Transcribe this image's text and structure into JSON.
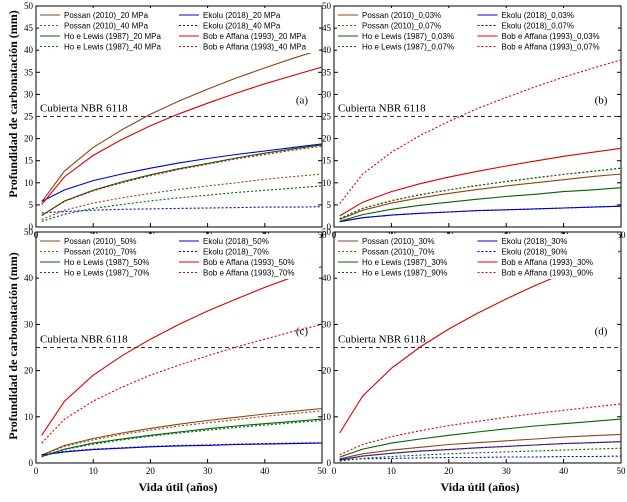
{
  "ylabel_shared": "Profundidad de carbonatación  (mm)",
  "xlabel_shared": "Vida útil (años)",
  "reference_text": "Cubierta NBR 6118",
  "chart_data": [
    {
      "type": "line",
      "panel": "(a)",
      "xlim": [
        0,
        50
      ],
      "ylim": [
        0,
        50
      ],
      "xticks": [
        "0",
        "10",
        "20",
        "30",
        "40",
        "50"
      ],
      "yticks": [
        "0",
        "5",
        "10",
        "15",
        "20",
        "25",
        "30",
        "35",
        "40",
        "45",
        "50"
      ],
      "reference_line": 25,
      "series": [
        {
          "name": "Possan (2010)_20 MPa",
          "color": "#8B4513",
          "dash": "solid",
          "x": [
            1,
            5,
            10,
            15,
            20,
            25,
            30,
            35,
            40,
            45,
            50
          ],
          "y": [
            5.7,
            12.7,
            18,
            22,
            25.5,
            28.5,
            31.2,
            33.7,
            36,
            38.2,
            40.2
          ]
        },
        {
          "name": "Ekolu (2018)_20 MPa",
          "color": "#0000cc",
          "dash": "solid",
          "x": [
            1,
            5,
            10,
            15,
            20,
            25,
            30,
            35,
            40,
            45,
            50
          ],
          "y": [
            5.8,
            8.4,
            10.5,
            12,
            13.3,
            14.5,
            15.5,
            16.4,
            17.2,
            18,
            18.8
          ]
        },
        {
          "name": "Possan (2010)_40 MPa",
          "color": "#8B4513",
          "dash": "dotted",
          "x": [
            1,
            5,
            10,
            15,
            20,
            25,
            30,
            35,
            40,
            45,
            50
          ],
          "y": [
            1.7,
            3.8,
            5.4,
            6.6,
            7.6,
            8.5,
            9.3,
            10,
            10.8,
            11.4,
            12
          ]
        },
        {
          "name": "Ekolu (2018)_40 MPa",
          "color": "#0000cc",
          "dash": "dotted",
          "x": [
            1,
            5,
            10,
            15,
            20,
            25,
            30,
            35,
            40,
            45,
            50
          ],
          "y": [
            3.2,
            3.5,
            3.8,
            4,
            4.1,
            4.2,
            4.3,
            4.4,
            4.5,
            4.5,
            4.6
          ]
        },
        {
          "name": "Ho e Lewis (1987)_20 MPa",
          "color": "#006400",
          "dash": "solid",
          "x": [
            1,
            5,
            10,
            15,
            20,
            25,
            30,
            35,
            40,
            45,
            50
          ],
          "y": [
            2.6,
            5.9,
            8.3,
            10.2,
            11.8,
            13.2,
            14.4,
            15.6,
            16.7,
            17.7,
            18.6
          ]
        },
        {
          "name": "Bob e Affana (1993)_20 MPa",
          "color": "#dd0000",
          "dash": "solid",
          "x": [
            1,
            5,
            10,
            15,
            20,
            25,
            30,
            35,
            40,
            45,
            50
          ],
          "y": [
            5.1,
            11.4,
            16.2,
            19.8,
            22.9,
            25.6,
            28,
            30.3,
            32.4,
            34.3,
            36.2
          ]
        },
        {
          "name": "Ho e Lewis (1987)_40 MPa",
          "color": "#006400",
          "dash": "dotted",
          "x": [
            1,
            5,
            10,
            15,
            20,
            25,
            30,
            35,
            40,
            45,
            50
          ],
          "y": [
            1.3,
            2.9,
            4.2,
            5.1,
            5.9,
            6.6,
            7.2,
            7.8,
            8.3,
            8.8,
            9.3
          ]
        },
        {
          "name": "Bob e Affana (1993)_40 MPa",
          "color": "#dd0000",
          "dash": "dotted",
          "x": [
            1,
            5,
            10,
            15,
            20,
            25,
            30,
            35,
            40,
            45,
            50
          ],
          "y": [
            2.6,
            5.8,
            8.2,
            10,
            11.6,
            13,
            14.2,
            15.4,
            16.4,
            17.4,
            18.3
          ]
        }
      ]
    },
    {
      "type": "line",
      "panel": "(b)",
      "xlim": [
        0,
        50
      ],
      "ylim": [
        0,
        50
      ],
      "xticks": [
        "0",
        "10",
        "20",
        "30",
        "40",
        "50"
      ],
      "yticks": [
        "0",
        "5",
        "10",
        "15",
        "20",
        "25",
        "30",
        "35",
        "40",
        "45",
        "50"
      ],
      "reference_line": 25,
      "series": [
        {
          "name": "Possan (2010)_0,03%",
          "color": "#8B4513",
          "dash": "solid",
          "x": [
            1,
            5,
            10,
            15,
            20,
            25,
            30,
            35,
            40,
            45,
            50
          ],
          "y": [
            1.7,
            3.8,
            5.4,
            6.6,
            7.6,
            8.5,
            9.3,
            10,
            10.7,
            11.4,
            12
          ]
        },
        {
          "name": "Ekolu (2018)_0,03%",
          "color": "#0000cc",
          "dash": "solid",
          "x": [
            1,
            5,
            10,
            15,
            20,
            25,
            30,
            35,
            40,
            45,
            50
          ],
          "y": [
            1.2,
            2.1,
            2.7,
            3.1,
            3.4,
            3.7,
            3.9,
            4.1,
            4.3,
            4.5,
            4.7
          ]
        },
        {
          "name": "Possan (2010)_0,07%",
          "color": "#8B4513",
          "dash": "dotted",
          "x": [
            1,
            5,
            10,
            15,
            20,
            25,
            30,
            35,
            40,
            45,
            50
          ],
          "y": [
            1.9,
            4.2,
            6,
            7.3,
            8.4,
            9.4,
            10.3,
            11.1,
            11.9,
            12.6,
            13.3
          ]
        },
        {
          "name": "Ekolu (2018)_0,07%",
          "color": "#0000cc",
          "dash": "dotted",
          "x": [
            1,
            5,
            10,
            15,
            20,
            25,
            30,
            35,
            40,
            45,
            50
          ],
          "y": [
            1.2,
            2.1,
            2.7,
            3.1,
            3.4,
            3.7,
            3.9,
            4.1,
            4.3,
            4.5,
            4.7
          ]
        },
        {
          "name": "Ho e Lewis (1987)_0,03%",
          "color": "#006400",
          "dash": "solid",
          "x": [
            1,
            5,
            10,
            15,
            20,
            25,
            30,
            35,
            40,
            45,
            50
          ],
          "y": [
            1.3,
            2.8,
            4,
            4.9,
            5.6,
            6.3,
            6.9,
            7.4,
            8,
            8.4,
            8.9
          ]
        },
        {
          "name": "Bob e Affana (1993)_0,03%",
          "color": "#dd0000",
          "dash": "solid",
          "x": [
            1,
            5,
            10,
            15,
            20,
            25,
            30,
            35,
            40,
            45,
            50
          ],
          "y": [
            2.5,
            5.6,
            8,
            9.8,
            11.3,
            12.6,
            13.8,
            14.9,
            16,
            16.9,
            17.8
          ]
        },
        {
          "name": "Ho e Lewis (1987)_0,07%",
          "color": "#006400",
          "dash": "dotted",
          "x": [
            1,
            5,
            10,
            15,
            20,
            25,
            30,
            35,
            40,
            45,
            50
          ],
          "y": [
            1.9,
            4.2,
            5.9,
            7.3,
            8.4,
            9.4,
            10.3,
            11.1,
            11.9,
            12.6,
            13.3
          ]
        },
        {
          "name": "Bob e Affana (1993)_0,07%",
          "color": "#dd0000",
          "dash": "dotted",
          "x": [
            1,
            5,
            10,
            15,
            20,
            25,
            30,
            35,
            40,
            45,
            50
          ],
          "y": [
            5.3,
            12,
            16.9,
            20.7,
            23.9,
            26.8,
            29.3,
            31.7,
            33.9,
            35.9,
            37.8
          ]
        }
      ]
    },
    {
      "type": "line",
      "panel": "(c)",
      "xlim": [
        0,
        50
      ],
      "ylim": [
        0,
        50
      ],
      "xticks": [
        "0",
        "10",
        "20",
        "30",
        "40",
        "50"
      ],
      "yticks": [
        "0",
        "10",
        "20",
        "30",
        "40",
        "50"
      ],
      "reference_line": 25,
      "series": [
        {
          "name": "Possan (2010)_50%",
          "color": "#8B4513",
          "dash": "solid",
          "x": [
            1,
            5,
            10,
            15,
            20,
            25,
            30,
            35,
            40,
            45,
            50
          ],
          "y": [
            1.7,
            3.8,
            5.3,
            6.5,
            7.5,
            8.4,
            9.2,
            9.9,
            10.6,
            11.2,
            11.8
          ]
        },
        {
          "name": "Ekolu (2018)_50%",
          "color": "#0000cc",
          "dash": "solid",
          "x": [
            1,
            5,
            10,
            15,
            20,
            25,
            30,
            35,
            40,
            45,
            50
          ],
          "y": [
            1.7,
            2.4,
            2.9,
            3.2,
            3.5,
            3.7,
            3.8,
            4,
            4.1,
            4.2,
            4.3
          ]
        },
        {
          "name": "Possan (2010)_70%",
          "color": "#8B4513",
          "dash": "dotted",
          "x": [
            1,
            5,
            10,
            15,
            20,
            25,
            30,
            35,
            40,
            45,
            50
          ],
          "y": [
            1.6,
            3.6,
            5,
            6.2,
            7.1,
            8,
            8.7,
            9.4,
            10.1,
            10.7,
            11.3
          ]
        },
        {
          "name": "Ekolu (2018)_70%",
          "color": "#0000cc",
          "dash": "dotted",
          "x": [
            1,
            5,
            10,
            15,
            20,
            25,
            30,
            35,
            40,
            45,
            50
          ],
          "y": [
            1.8,
            2.5,
            3,
            3.3,
            3.6,
            3.8,
            3.9,
            4.1,
            4.2,
            4.3,
            4.4
          ]
        },
        {
          "name": "Ho e Lewis (1987)_50%",
          "color": "#006400",
          "dash": "solid",
          "x": [
            1,
            5,
            10,
            15,
            20,
            25,
            30,
            35,
            40,
            45,
            50
          ],
          "y": [
            1.4,
            3,
            4.3,
            5.2,
            6,
            6.7,
            7.4,
            8,
            8.5,
            9,
            9.5
          ]
        },
        {
          "name": "Bob e Affana (1993)_50%",
          "color": "#dd0000",
          "dash": "solid",
          "x": [
            1,
            5,
            10,
            15,
            20,
            25,
            30,
            35,
            40,
            45,
            50
          ],
          "y": [
            6,
            13.4,
            19,
            23.2,
            26.8,
            30,
            32.9,
            35.5,
            38,
            40.3,
            42.5
          ]
        },
        {
          "name": "Ho e Lewis (1987)_70%",
          "color": "#006400",
          "dash": "dotted",
          "x": [
            1,
            5,
            10,
            15,
            20,
            25,
            30,
            35,
            40,
            45,
            50
          ],
          "y": [
            1.3,
            2.9,
            4.1,
            5,
            5.8,
            6.5,
            7.1,
            7.7,
            8.2,
            8.7,
            9.2
          ]
        },
        {
          "name": "Bob e Affana (1993)_70%",
          "color": "#dd0000",
          "dash": "dotted",
          "x": [
            1,
            5,
            10,
            15,
            20,
            25,
            30,
            35,
            40,
            45,
            50
          ],
          "y": [
            4.3,
            9.5,
            13.4,
            16.4,
            19,
            21.2,
            23.2,
            25.1,
            26.8,
            28.5,
            30
          ]
        }
      ]
    },
    {
      "type": "line",
      "panel": "(d)",
      "xlim": [
        0,
        50
      ],
      "ylim": [
        0,
        50
      ],
      "xticks": [
        "0",
        "10",
        "20",
        "30",
        "40",
        "50"
      ],
      "yticks": [
        "0",
        "10",
        "20",
        "30",
        "40",
        "50"
      ],
      "reference_line": 25,
      "series": [
        {
          "name": "Possan (2010)_30%",
          "color": "#8B4513",
          "dash": "solid",
          "x": [
            1,
            5,
            10,
            15,
            20,
            25,
            30,
            35,
            40,
            45,
            50
          ],
          "y": [
            0.9,
            2,
            2.8,
            3.4,
            4,
            4.4,
            4.8,
            5.2,
            5.6,
            5.9,
            6.2
          ]
        },
        {
          "name": "Ekolu (2018)_30%",
          "color": "#0000cc",
          "dash": "solid",
          "x": [
            1,
            5,
            10,
            15,
            20,
            25,
            30,
            35,
            40,
            45,
            50
          ],
          "y": [
            0.7,
            1.5,
            2.1,
            2.6,
            2.9,
            3.3,
            3.6,
            3.9,
            4.2,
            4.4,
            4.6
          ]
        },
        {
          "name": "Possan (2010)_70%",
          "color": "#8B4513",
          "dash": "dotted",
          "x": [
            1,
            5,
            10,
            15,
            20,
            25,
            30,
            35,
            40,
            45,
            50
          ],
          "y": [
            0.6,
            1.5,
            2.1,
            2.5,
            2.9,
            3.3,
            3.6,
            3.9,
            4.2,
            4.4,
            4.6
          ]
        },
        {
          "name": "Ekolu (2018)_90%",
          "color": "#0000cc",
          "dash": "dotted",
          "x": [
            1,
            5,
            10,
            15,
            20,
            25,
            30,
            35,
            40,
            45,
            50
          ],
          "y": [
            0.7,
            0.9,
            1,
            1.1,
            1.2,
            1.2,
            1.3,
            1.3,
            1.4,
            1.4,
            1.5
          ]
        },
        {
          "name": "Ho e Lewis (1987)_30%",
          "color": "#006400",
          "dash": "solid",
          "x": [
            1,
            5,
            10,
            15,
            20,
            25,
            30,
            35,
            40,
            45,
            50
          ],
          "y": [
            1.3,
            3,
            4.3,
            5.2,
            6,
            6.7,
            7.4,
            8,
            8.5,
            9,
            9.5
          ]
        },
        {
          "name": "Bob e Affana (1993)_30%",
          "color": "#dd0000",
          "dash": "solid",
          "x": [
            1,
            5,
            10,
            15,
            20,
            25,
            30,
            35,
            40,
            45,
            50
          ],
          "y": [
            6.5,
            14.5,
            20.5,
            25.1,
            29,
            32.4,
            35.5,
            38.4,
            41,
            43.5,
            45.9
          ]
        },
        {
          "name": "Ho e Lewis (1987)_90%",
          "color": "#006400",
          "dash": "dotted",
          "x": [
            1,
            5,
            10,
            15,
            20,
            25,
            30,
            35,
            40,
            45,
            50
          ],
          "y": [
            0.4,
            1,
            1.4,
            1.7,
            2,
            2.2,
            2.4,
            2.6,
            2.8,
            3,
            3.2
          ]
        },
        {
          "name": "Bob e Affana (1993)_90%",
          "color": "#dd0000",
          "dash": "dotted",
          "x": [
            1,
            5,
            10,
            15,
            20,
            25,
            30,
            35,
            40,
            45,
            50
          ],
          "y": [
            1.8,
            4,
            5.7,
            7,
            8.1,
            9,
            9.9,
            10.7,
            11.4,
            12.1,
            12.8
          ]
        }
      ]
    }
  ]
}
